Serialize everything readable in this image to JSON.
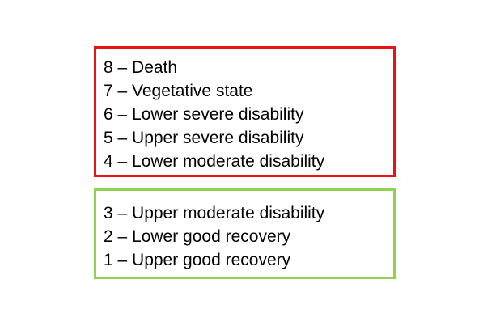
{
  "unfavourable_group": {
    "border_color": "#ee1111",
    "items": [
      "8 – Death",
      "7 – Vegetative state",
      "6 – Lower severe disability",
      "5 – Upper severe disability",
      "4 – Lower moderate disability"
    ]
  },
  "favourable_group": {
    "border_color": "#92d050",
    "items": [
      "3 – Upper moderate disability",
      "2 – Lower good recovery",
      "1 – Upper good recovery"
    ]
  }
}
